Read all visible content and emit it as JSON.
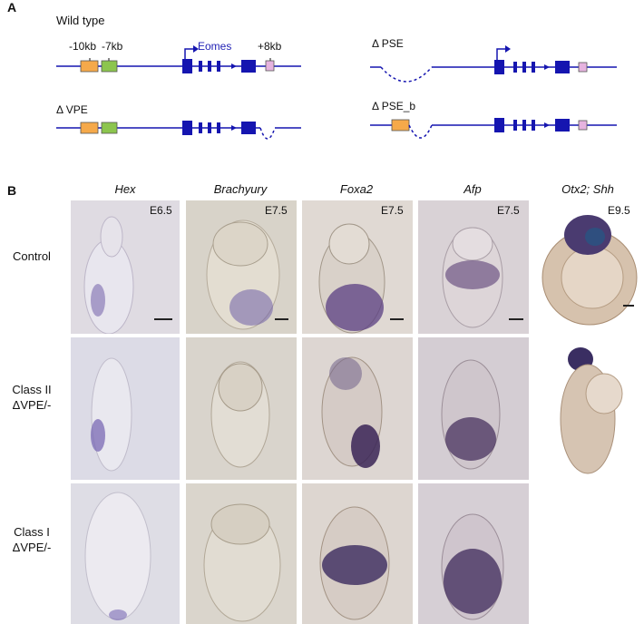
{
  "panel_a": {
    "letter": "A",
    "wild_type_title": "Wild type",
    "label_minus10kb": "-10kb",
    "label_minus7kb": "-7kb",
    "label_eomes": "Eomes",
    "label_plus8kb": "+8kb",
    "label_dpse": "Δ PSE",
    "label_dvpe": "Δ VPE",
    "label_dpse_b": "Δ PSE_b",
    "colors": {
      "gene": "#1515b0",
      "minus10kb_box": "#f5a94a",
      "minus7kb_box": "#8cc54e",
      "plus8kb_box": "#e6b3df"
    }
  },
  "panel_b": {
    "letter": "B",
    "columns": [
      {
        "gene": "Hex",
        "stage": "E6.5"
      },
      {
        "gene": "Brachyury",
        "stage": "E7.5"
      },
      {
        "gene": "Foxa2",
        "stage": "E7.5"
      },
      {
        "gene": "Afp",
        "stage": "E7.5"
      },
      {
        "gene": "Otx2; Shh",
        "stage": "E9.5"
      }
    ],
    "rows": [
      {
        "line1": "Control",
        "line2": ""
      },
      {
        "line1": "Class II",
        "line2": "ΔVPE/-"
      },
      {
        "line1": "Class I",
        "line2": "ΔVPE/-"
      }
    ],
    "colors": {
      "stain": "#3a2a7a",
      "background": "#d6d0c8"
    }
  }
}
